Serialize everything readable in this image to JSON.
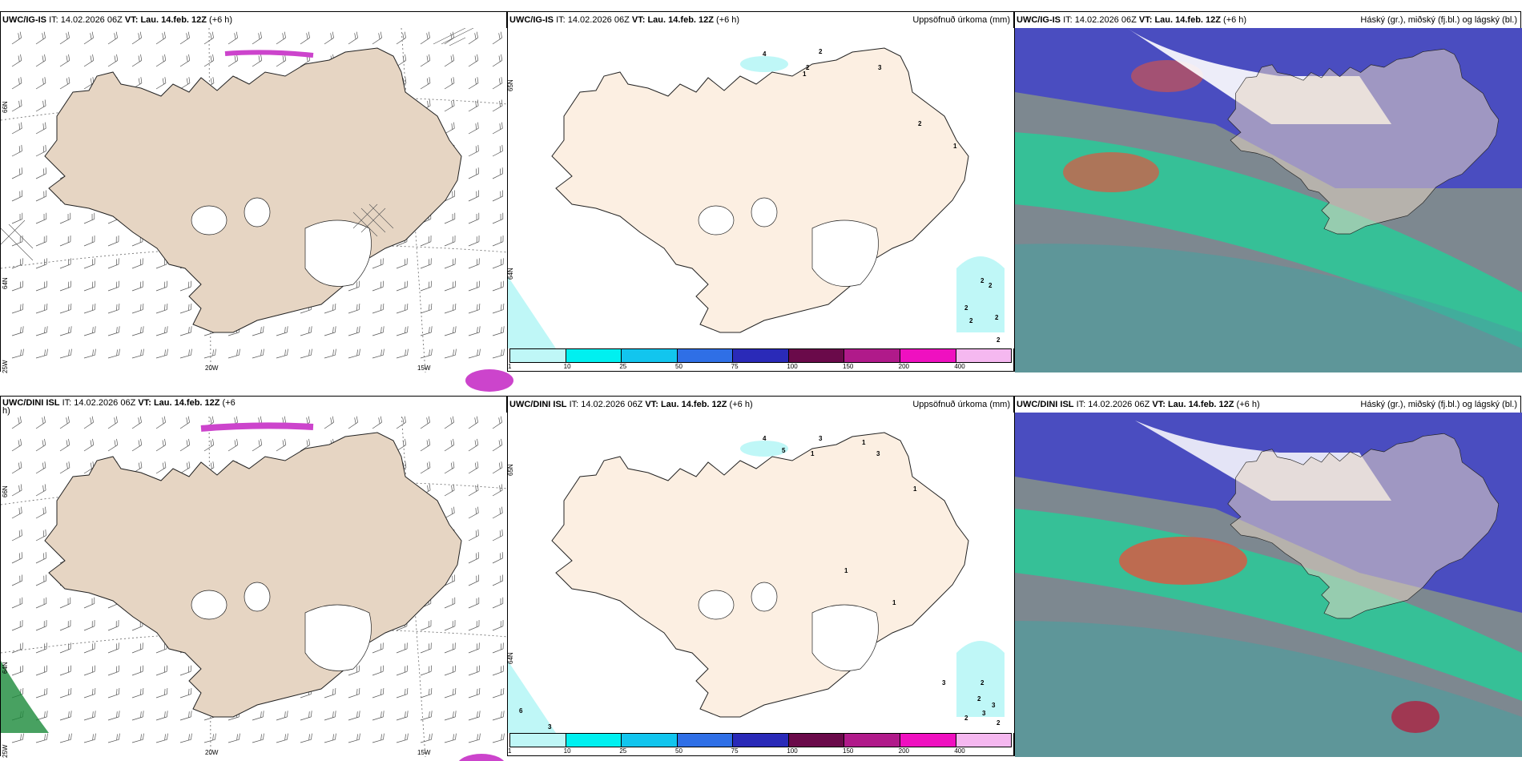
{
  "rows": [
    {
      "model": "UWC/IG-IS",
      "it_label": "IT:",
      "it": "14.02.2026 06Z",
      "vt_label": "VT:",
      "vt": "Lau. 14.feb. 12Z",
      "lead": "(+6 h)",
      "precip_numbers": [
        "4",
        "2",
        "2",
        "1",
        "3",
        "2",
        "1",
        "2",
        "2",
        "2",
        "2",
        "2",
        "2"
      ],
      "lat_labels": [
        "66N",
        "64N",
        "65N",
        "64N"
      ]
    },
    {
      "model": "UWC/DINI ISL",
      "it_label": "IT:",
      "it": "14.02.2026 06Z",
      "vt_label": "VT:",
      "vt": "Lau. 14.feb. 12Z",
      "lead": "(+6",
      "lead_wrap": "h)",
      "precip_numbers": [
        "4",
        "3",
        "1",
        "5",
        "1",
        "3",
        "1",
        "1",
        "1",
        "3",
        "2",
        "2",
        "3",
        "3",
        "2",
        "2",
        "6",
        "3"
      ],
      "lat_labels": [
        "66N",
        "64N",
        "65N",
        "64N"
      ]
    }
  ],
  "panels": {
    "precip_title": "Uppsöfnuð úrkoma (mm)",
    "cloud_title": "Háský (gr.), miðský (fj.bl.) og lágský (bl.)"
  },
  "lon_labels": [
    "25W",
    "20W",
    "15W"
  ],
  "colorbar": {
    "ticks": [
      "1",
      "10",
      "25",
      "50",
      "75",
      "100",
      "150",
      "200",
      "400"
    ],
    "colors": [
      "#bff7f7",
      "#00f0f0",
      "#12c5ee",
      "#2f6fe6",
      "#2a2ab8",
      "#6a0a4a",
      "#b01a8a",
      "#ef10c0",
      "#f5b8f0"
    ]
  },
  "colors": {
    "land": "#e6d5c3",
    "land_precip": "#fcefe2",
    "cloud_high": "#7d8890",
    "cloud_mid_green": "#1fd39a",
    "cloud_low_blue": "#3a3ad0",
    "cloud_red": "#e0553f"
  }
}
